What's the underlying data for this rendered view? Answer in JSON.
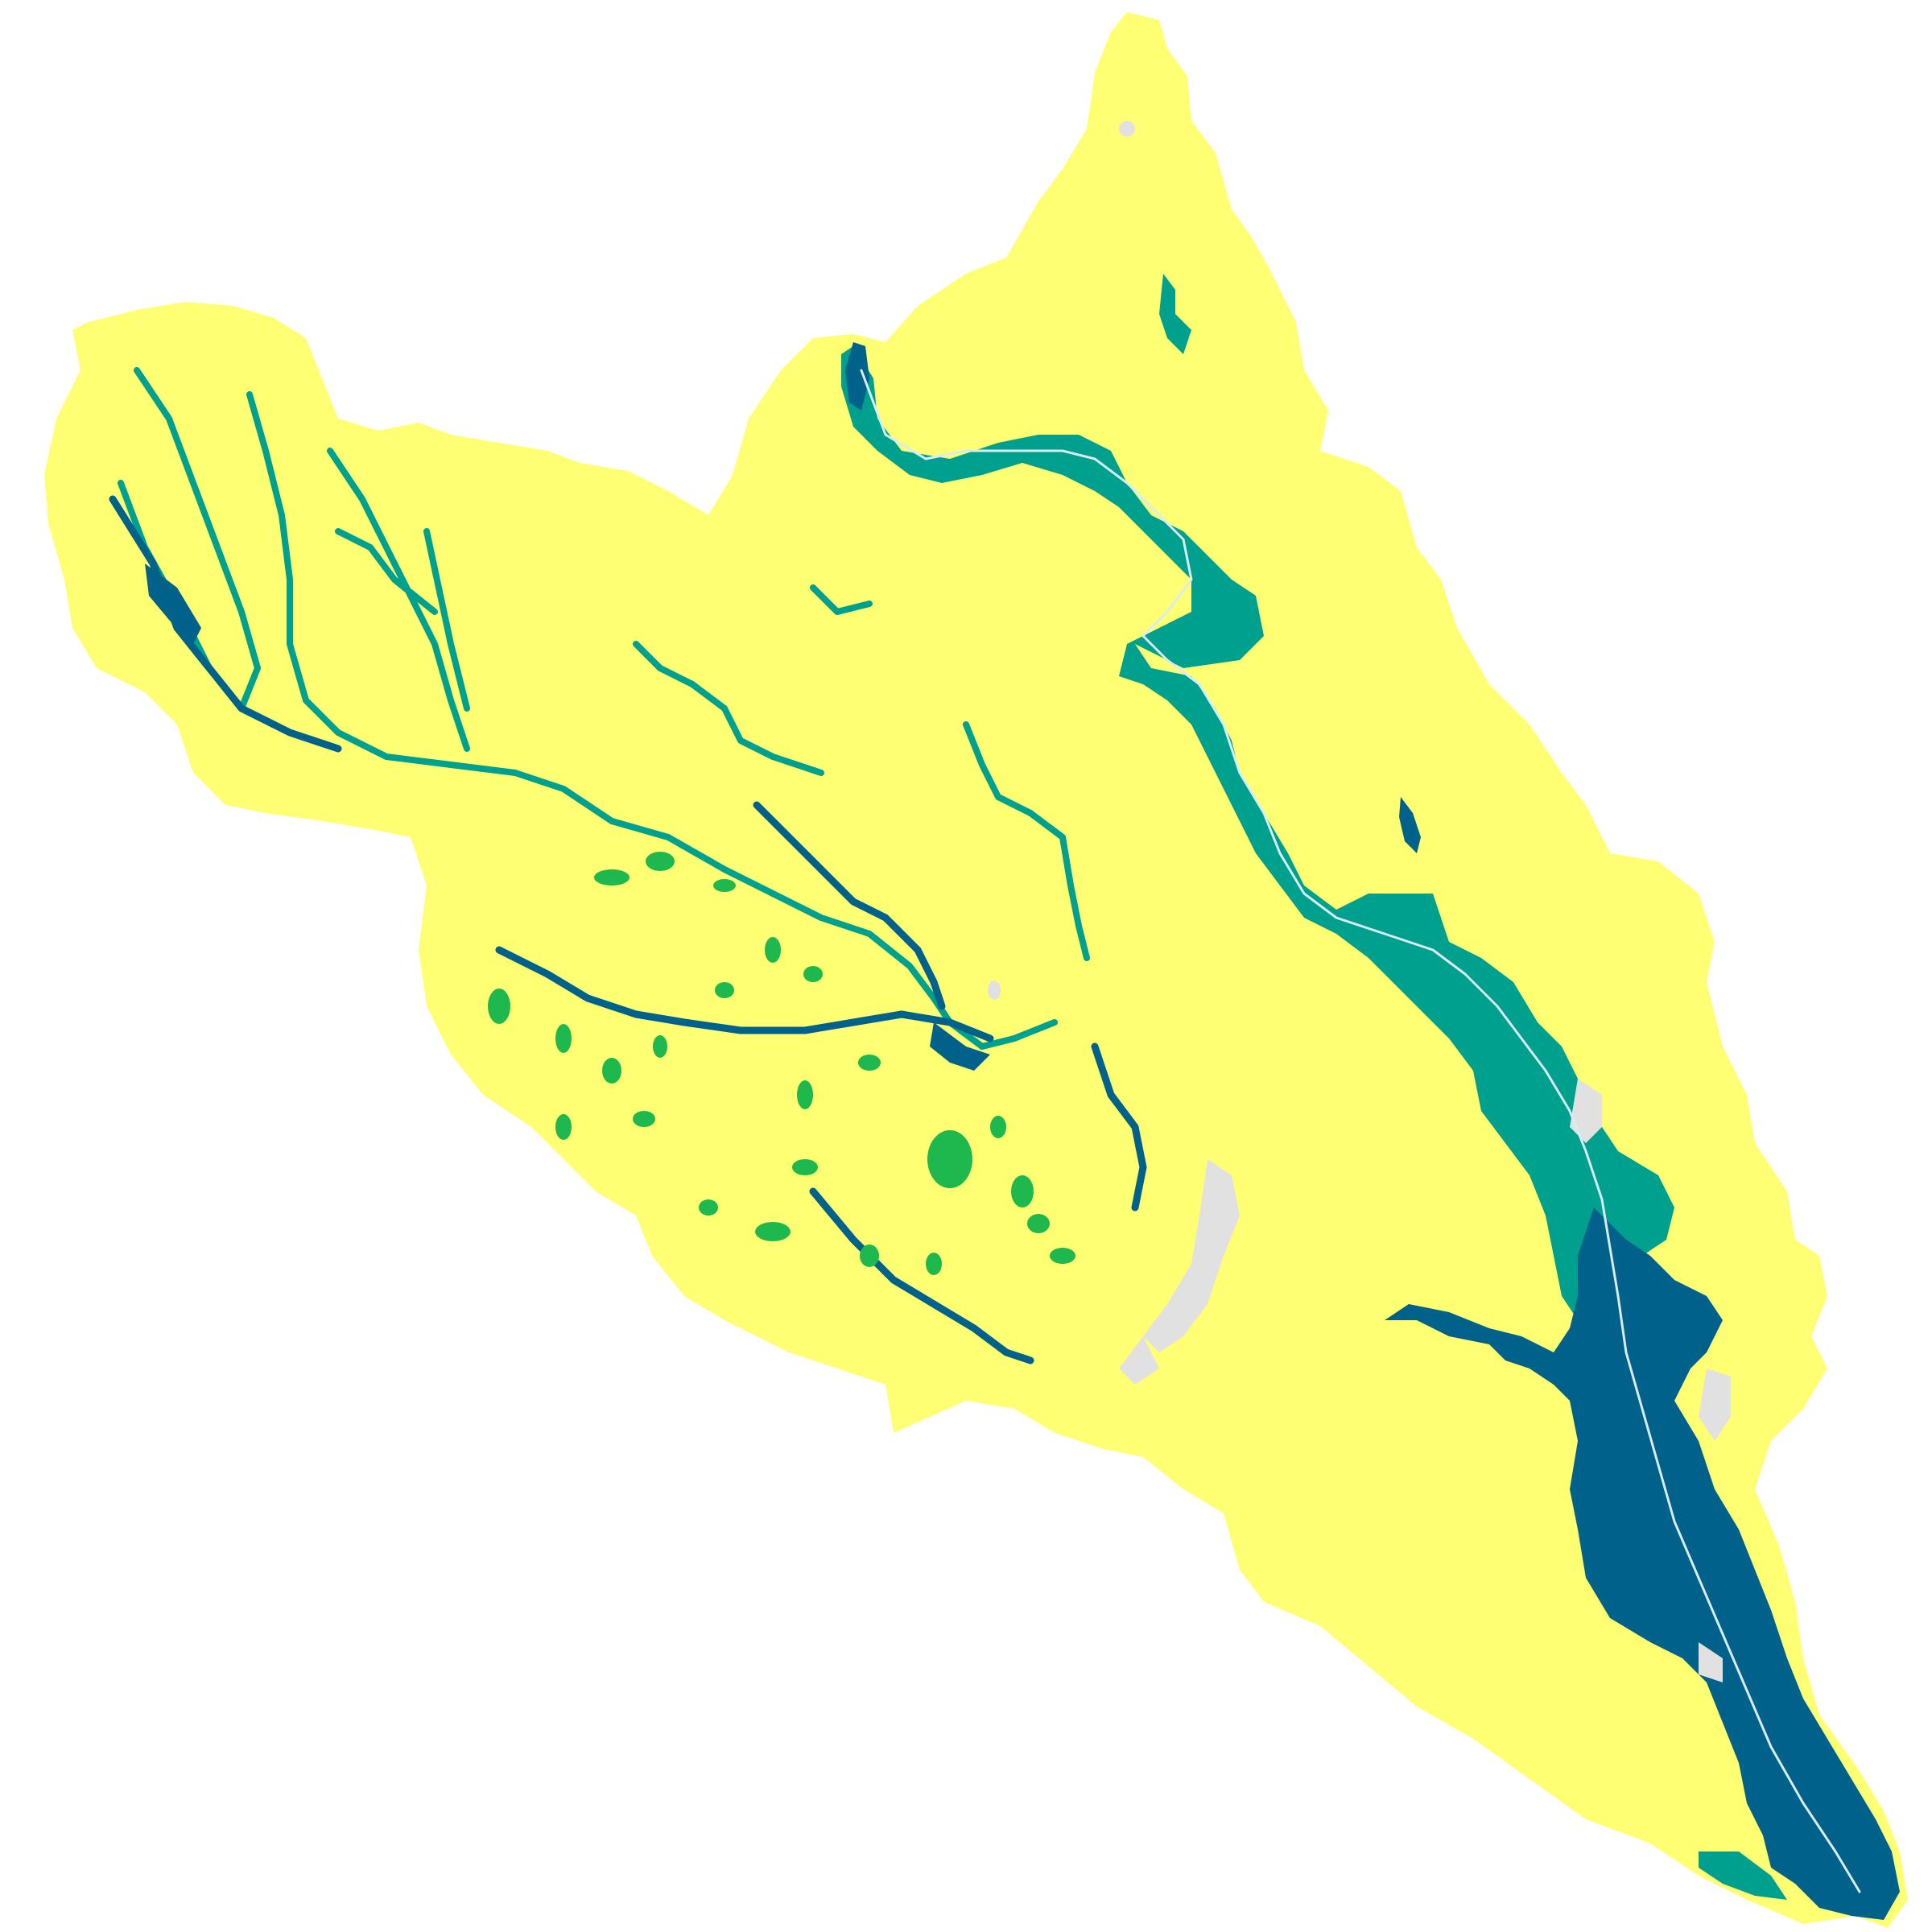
{
  "map": {
    "background": "#ffffff",
    "colors": {
      "basin_fill": "#ffff73",
      "class_deep": "#00628b",
      "class_teal": "#00a08f",
      "class_green": "#1fb84f",
      "channel_line": "#d9ecf2",
      "urban_gray": "#e1e1e1"
    },
    "classes": [
      "deep-flood-zone",
      "moderate-flood-zone",
      "shallow-flood-zone",
      "river-channel",
      "urban-area"
    ]
  }
}
